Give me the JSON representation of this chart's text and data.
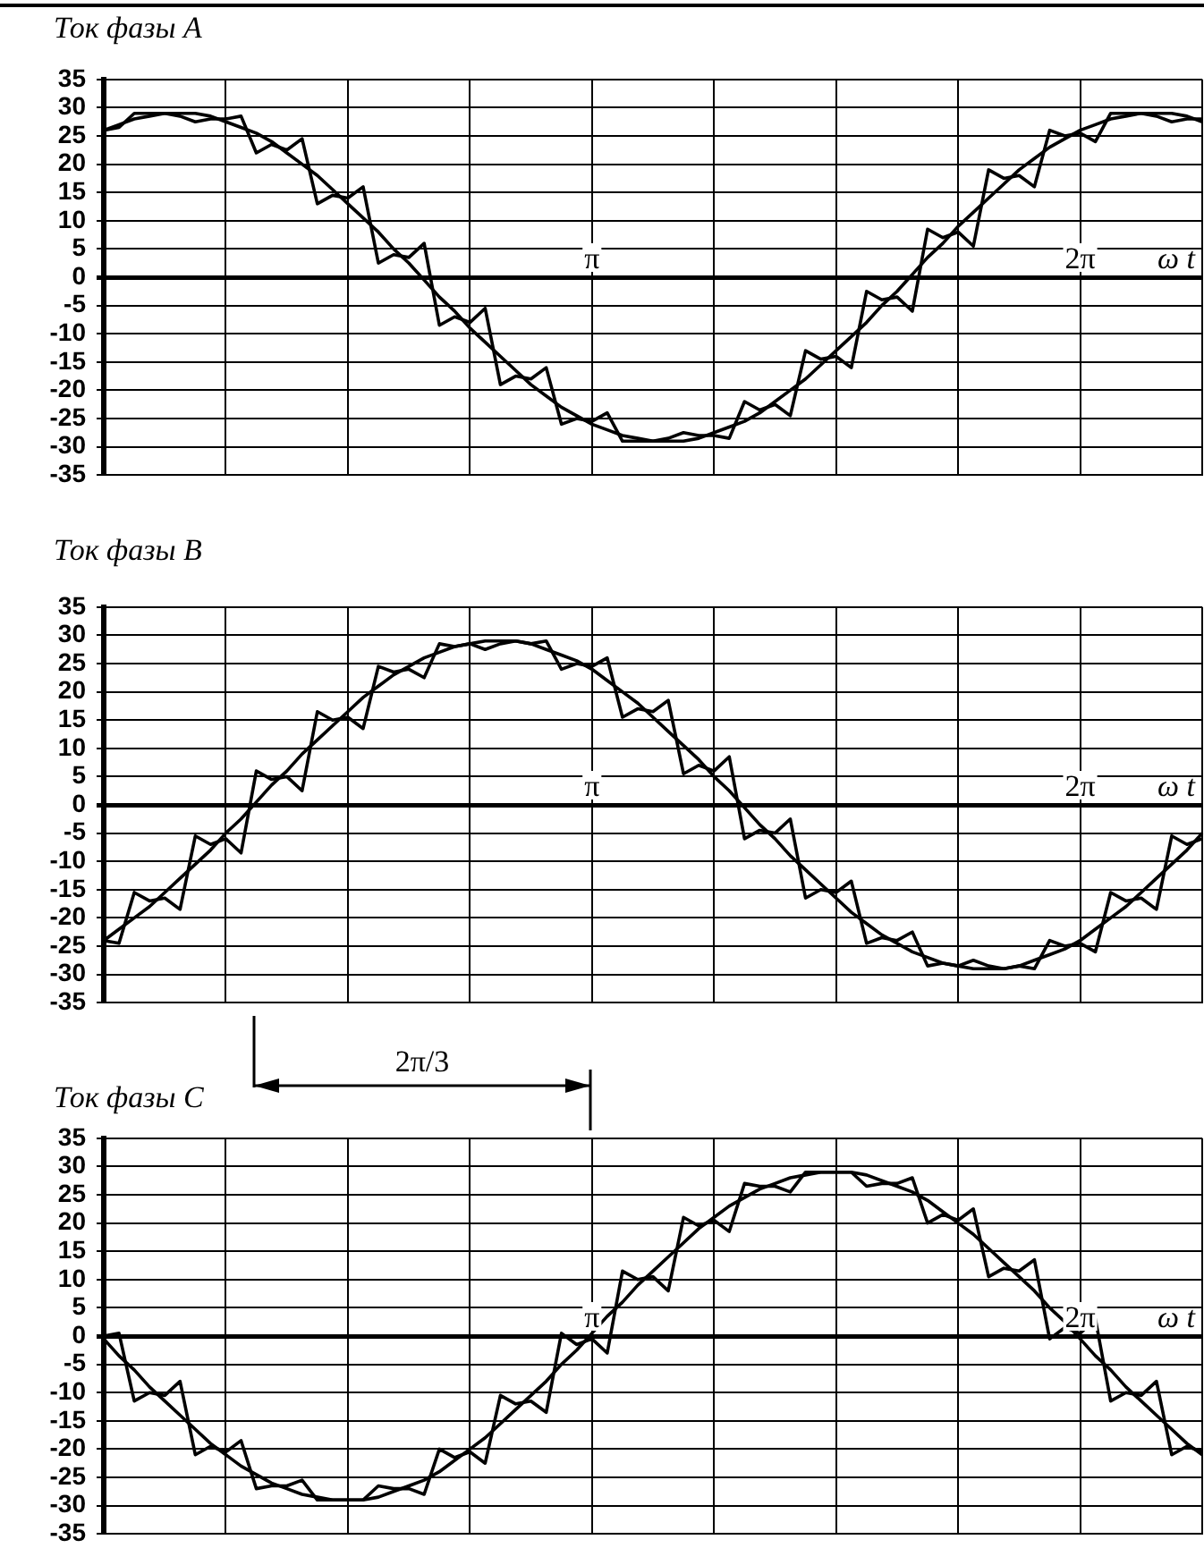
{
  "chart_data": [
    {
      "type": "line",
      "title": "Ток фазы A",
      "xlabel": "ω t",
      "ylim": [
        -35,
        35
      ],
      "categories": [
        null,
        null,
        null,
        null,
        null,
        null,
        null,
        null,
        null,
        null,
        null,
        null,
        null,
        null,
        null,
        null,
        null,
        null,
        null,
        null,
        null,
        null,
        null,
        null,
        null,
        null,
        null,
        null,
        null,
        null,
        null,
        null,
        "π",
        null,
        null,
        null,
        null,
        null,
        null,
        null,
        null,
        null,
        null,
        null,
        null,
        null,
        null,
        null,
        null,
        null,
        null,
        null,
        null,
        null,
        null,
        null,
        null,
        null,
        null,
        null,
        null,
        null,
        null,
        null,
        "2π",
        null,
        null,
        null,
        null,
        null,
        null,
        null,
        null
      ],
      "yticks": [
        -35,
        -30,
        -25,
        -20,
        -15,
        -10,
        -5,
        0,
        5,
        10,
        15,
        20,
        25,
        30,
        35
      ],
      "grid": true,
      "series": [
        {
          "type": "line",
          "color": "#000000",
          "values": [
            26,
            27,
            28,
            28.5,
            29,
            29,
            29,
            28.5,
            27.5,
            26.5,
            25.5,
            24,
            22,
            20,
            18,
            15.5,
            13,
            10.5,
            8,
            5,
            2.5,
            -0.5,
            -3.5,
            -6,
            -9,
            -11.5,
            -14,
            -16.5,
            -19,
            -21,
            -23,
            -24.5,
            -26,
            -27,
            -28,
            -28.5,
            -29,
            -29,
            -29,
            -28.5,
            -27.5,
            -26.5,
            -25.5,
            -24,
            -22,
            -20,
            -18,
            -15.5,
            -13,
            -10.5,
            -8,
            -5,
            -2.5,
            0.5,
            3.5,
            6,
            9,
            11.5,
            14,
            16.5,
            19,
            21,
            23,
            24.5,
            26,
            27,
            28,
            28.5,
            29,
            29,
            29,
            28.5,
            27.5
          ]
        },
        {
          "type": "line",
          "color": "#000000",
          "values": [
            26,
            26.5,
            29,
            29,
            29,
            28.5,
            27.5,
            28,
            28,
            28.5,
            22,
            23.5,
            22.5,
            24.5,
            13,
            14.5,
            14,
            16,
            2.5,
            4,
            3.5,
            6,
            -8.5,
            -7,
            -8,
            -5.5,
            -19,
            -17.5,
            -18,
            -16,
            -26,
            -25,
            -25.5,
            -24,
            -29,
            -29,
            -29,
            -28.5,
            -27.5,
            -28,
            -28,
            -28.5,
            -22,
            -23.5,
            -22.5,
            -24.5,
            -13,
            -14.5,
            -14,
            -16,
            -2.5,
            -4,
            -3.5,
            -6,
            8.5,
            7,
            8,
            5.5,
            19,
            17.5,
            18,
            16,
            26,
            25,
            25.5,
            24,
            29,
            29,
            29,
            28.5,
            27.5,
            28,
            28
          ]
        }
      ]
    },
    {
      "type": "line",
      "title": "Ток фазы B",
      "xlabel": "ω t",
      "ylim": [
        -35,
        35
      ],
      "categories": [
        null,
        null,
        null,
        null,
        null,
        null,
        null,
        null,
        null,
        null,
        null,
        null,
        null,
        null,
        null,
        null,
        null,
        null,
        null,
        null,
        null,
        null,
        null,
        null,
        null,
        null,
        null,
        null,
        null,
        null,
        null,
        null,
        "π",
        null,
        null,
        null,
        null,
        null,
        null,
        null,
        null,
        null,
        null,
        null,
        null,
        null,
        null,
        null,
        null,
        null,
        null,
        null,
        null,
        null,
        null,
        null,
        null,
        null,
        null,
        null,
        null,
        null,
        null,
        null,
        "2π",
        null,
        null,
        null,
        null,
        null,
        null,
        null,
        null
      ],
      "yticks": [
        -35,
        -30,
        -25,
        -20,
        -15,
        -10,
        -5,
        0,
        5,
        10,
        15,
        20,
        25,
        30,
        35
      ],
      "grid": true,
      "series": [
        {
          "type": "line",
          "color": "#000000",
          "values": [
            -24,
            -22,
            -20,
            -18,
            -15.5,
            -13,
            -10.5,
            -8,
            -5,
            -2.5,
            0.5,
            3.5,
            6,
            9,
            11.5,
            14,
            16.5,
            19,
            21,
            23,
            24.5,
            26,
            27,
            28,
            28.5,
            29,
            29,
            29,
            28.5,
            27.5,
            26.5,
            25.5,
            24,
            22,
            20,
            18,
            15.5,
            13,
            10.5,
            8,
            5,
            2.5,
            -0.5,
            -3.5,
            -6,
            -9,
            -11.5,
            -14,
            -16.5,
            -19,
            -21,
            -23,
            -24.5,
            -26,
            -27,
            -28,
            -28.5,
            -29,
            -29,
            -29,
            -28.5,
            -27.5,
            -26.5,
            -25.5,
            -24,
            -22,
            -20,
            -18,
            -15.5,
            -13,
            -10.5,
            -8,
            -5
          ]
        },
        {
          "type": "line",
          "color": "#000000",
          "values": [
            -24,
            -24.5,
            -15.5,
            -17,
            -16.5,
            -18.5,
            -5.5,
            -7,
            -6,
            -8.5,
            6,
            4.5,
            5,
            2.5,
            16.5,
            15,
            15.5,
            13.5,
            24.5,
            23.5,
            24,
            22.5,
            28.5,
            28,
            28.5,
            27.5,
            28.5,
            29,
            28.5,
            29,
            24,
            25,
            24.5,
            26,
            15.5,
            17,
            16.5,
            18.5,
            5.5,
            7,
            6,
            8.5,
            -6,
            -4.5,
            -5,
            -2.5,
            -16.5,
            -15,
            -15.5,
            -13.5,
            -24.5,
            -23.5,
            -24,
            -22.5,
            -28.5,
            -28,
            -28.5,
            -27.5,
            -28.5,
            -29,
            -28.5,
            -29,
            -24,
            -25,
            -24.5,
            -26,
            -15.5,
            -17,
            -16.5,
            -18.5,
            -5.5,
            -7,
            -6
          ]
        }
      ]
    },
    {
      "type": "line",
      "title": "Ток фазы C",
      "xlabel": "ω t",
      "ylim": [
        -35,
        35
      ],
      "categories": [
        null,
        null,
        null,
        null,
        null,
        null,
        null,
        null,
        null,
        null,
        null,
        null,
        null,
        null,
        null,
        null,
        null,
        null,
        null,
        null,
        null,
        null,
        null,
        null,
        null,
        null,
        null,
        null,
        null,
        null,
        null,
        null,
        "π",
        null,
        null,
        null,
        null,
        null,
        null,
        null,
        null,
        null,
        null,
        null,
        null,
        null,
        null,
        null,
        null,
        null,
        null,
        null,
        null,
        null,
        null,
        null,
        null,
        null,
        null,
        null,
        null,
        null,
        null,
        null,
        "2π",
        null,
        null,
        null,
        null,
        null,
        null,
        null,
        null
      ],
      "yticks": [
        -35,
        -30,
        -25,
        -20,
        -15,
        -10,
        -5,
        0,
        5,
        10,
        15,
        20,
        25,
        30,
        35
      ],
      "grid": true,
      "annotations": [
        "2π/3"
      ],
      "series": [
        {
          "type": "line",
          "color": "#000000",
          "values": [
            -0.5,
            -3.5,
            -6,
            -9,
            -11.5,
            -14,
            -16.5,
            -19,
            -21,
            -23,
            -24.5,
            -26,
            -27,
            -28,
            -28.5,
            -29,
            -29,
            -29,
            -28.5,
            -27.5,
            -26.5,
            -25.5,
            -24,
            -22,
            -20,
            -18,
            -15.5,
            -13,
            -10.5,
            -8,
            -5,
            -2.5,
            0.5,
            3.5,
            6,
            9,
            11.5,
            14,
            16.5,
            19,
            21,
            23,
            24.5,
            26,
            27,
            28,
            28.5,
            29,
            29,
            29,
            28.5,
            27.5,
            26.5,
            25.5,
            24,
            22,
            20,
            18,
            15.5,
            13,
            10.5,
            8,
            5,
            2.5,
            -0.5,
            -3.5,
            -6,
            -9,
            -11.5,
            -14,
            -16.5,
            -19,
            -21
          ]
        },
        {
          "type": "line",
          "color": "#000000",
          "values": [
            0,
            0.5,
            -11.5,
            -10,
            -10.5,
            -8,
            -21,
            -19.5,
            -20.5,
            -18.5,
            -27,
            -26.5,
            -26.5,
            -25.5,
            -29,
            -29,
            -29,
            -29,
            -26.5,
            -27,
            -27,
            -28,
            -20,
            -21.5,
            -20.5,
            -22.5,
            -10.5,
            -12,
            -11.5,
            -13.5,
            0.5,
            -1.5,
            -0.5,
            -3,
            11.5,
            10,
            10.5,
            8,
            21,
            19.5,
            20.5,
            18.5,
            27,
            26.5,
            26.5,
            25.5,
            29,
            29,
            29,
            29,
            26.5,
            27,
            27,
            28,
            20,
            21.5,
            20.5,
            22.5,
            10.5,
            12,
            11.5,
            13.5,
            -0.5,
            1.5,
            0.5,
            3,
            -11.5,
            -10,
            -10.5,
            -8,
            -21,
            -19.5,
            -20.5
          ]
        }
      ]
    }
  ]
}
